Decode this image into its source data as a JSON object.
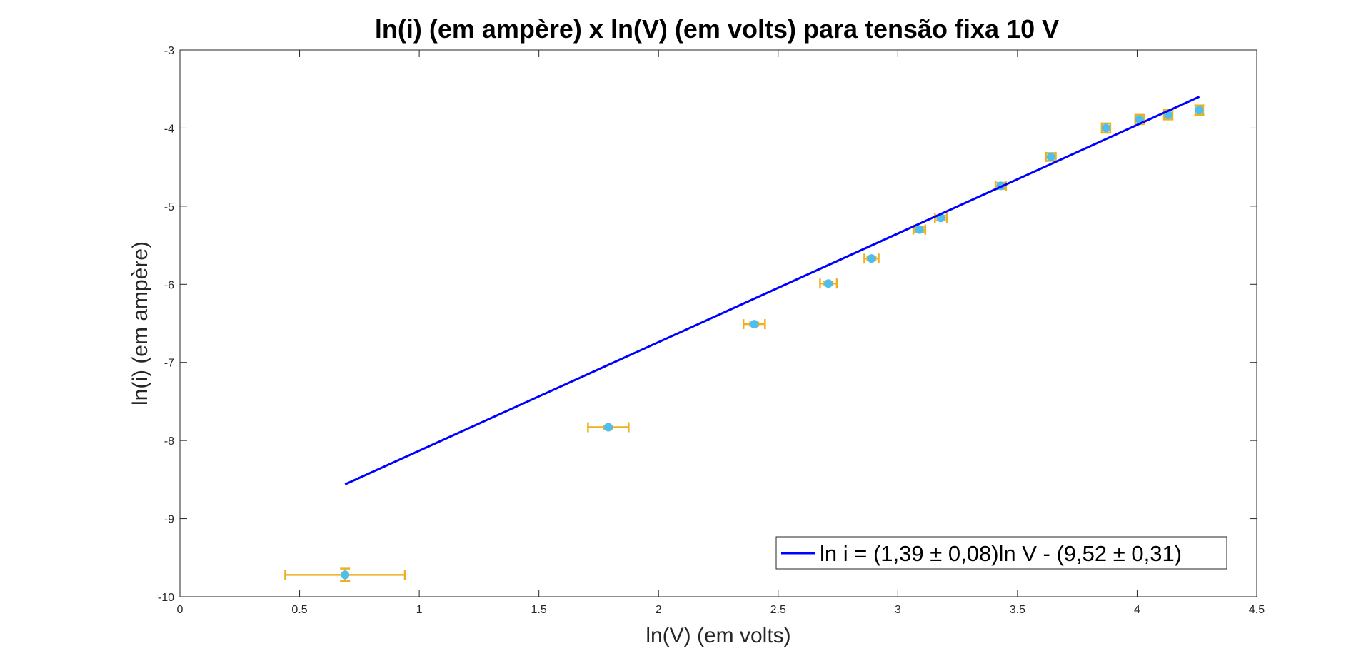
{
  "chart_data": {
    "type": "scatter",
    "title": "ln(i) (em ampère) x ln(V) (em volts) para tensão fixa 10 V",
    "xlabel": "ln(V) (em volts)",
    "ylabel": "ln(i) (em ampère)",
    "xlim": [
      0,
      4.5
    ],
    "ylim": [
      -10,
      -3
    ],
    "xticks": [
      0,
      0.5,
      1,
      1.5,
      2,
      2.5,
      3,
      3.5,
      4,
      4.5
    ],
    "xtick_labels": [
      "0",
      "0.5",
      "1",
      "1.5",
      "2",
      "2.5",
      "3",
      "3.5",
      "4",
      "4.5"
    ],
    "yticks": [
      -10,
      -9,
      -8,
      -7,
      -6,
      -5,
      -4,
      -3
    ],
    "ytick_labels": [
      "-10",
      "-9",
      "-8",
      "-7",
      "-6",
      "-5",
      "-4",
      "-3"
    ],
    "grid": false,
    "legend_position": "bottom-right",
    "legend_label": "ln i = (1,39 ± 0,08)ln V - (9,52 ± 0,31)",
    "points": {
      "x": [
        0.69,
        1.79,
        2.4,
        2.71,
        2.89,
        3.09,
        3.18,
        3.43,
        3.64,
        3.87,
        4.01,
        4.13,
        4.26
      ],
      "y": [
        -9.72,
        -7.83,
        -6.51,
        -5.99,
        -5.67,
        -5.3,
        -5.15,
        -4.74,
        -4.37,
        -4.0,
        -3.89,
        -3.83,
        -3.77
      ],
      "x_error": [
        0.25,
        0.085,
        0.045,
        0.035,
        0.03,
        0.025,
        0.025,
        0.022,
        0.02,
        0.018,
        0.018,
        0.018,
        0.016
      ],
      "y_error": [
        0.08,
        0.02,
        0.02,
        0.02,
        0.02,
        0.03,
        0.03,
        0.04,
        0.05,
        0.06,
        0.06,
        0.06,
        0.06
      ],
      "marker_color": "#4DBEEE",
      "errorbar_color": "#EDB120"
    },
    "fit_line": {
      "slope": 1.39,
      "intercept": -9.52,
      "x_range": [
        0.69,
        4.26
      ],
      "color": "#0000FF"
    }
  }
}
